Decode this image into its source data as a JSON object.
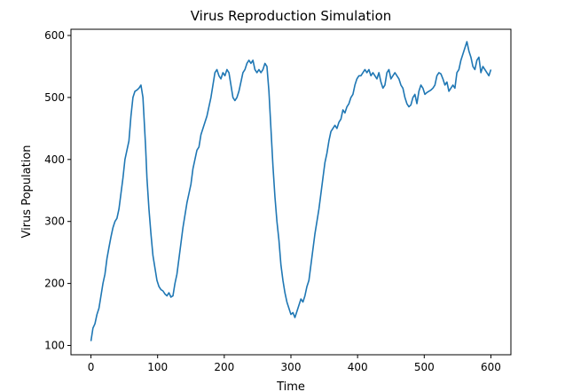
{
  "chart_data": {
    "type": "line",
    "title": "Virus Reproduction Simulation",
    "xlabel": "Time",
    "ylabel": "Virus Population",
    "xlim": [
      -30,
      630
    ],
    "ylim": [
      85,
      610
    ],
    "xticks": [
      0,
      100,
      200,
      300,
      400,
      500,
      600
    ],
    "yticks": [
      100,
      200,
      300,
      400,
      500,
      600
    ],
    "grid": false,
    "legend": "none",
    "series": [
      {
        "color": "#1f77b4",
        "x": [
          0,
          3,
          6,
          9,
          12,
          15,
          18,
          21,
          24,
          27,
          30,
          33,
          36,
          39,
          42,
          45,
          48,
          51,
          54,
          57,
          60,
          63,
          66,
          69,
          72,
          75,
          78,
          80,
          82,
          84,
          87,
          90,
          93,
          96,
          99,
          102,
          105,
          108,
          111,
          114,
          117,
          120,
          123,
          126,
          129,
          132,
          135,
          138,
          141,
          144,
          147,
          150,
          153,
          156,
          159,
          162,
          165,
          168,
          171,
          174,
          177,
          180,
          183,
          186,
          189,
          192,
          195,
          198,
          201,
          204,
          207,
          210,
          213,
          216,
          219,
          222,
          225,
          228,
          231,
          234,
          237,
          240,
          243,
          246,
          249,
          252,
          255,
          258,
          261,
          264,
          267,
          270,
          273,
          276,
          279,
          282,
          285,
          288,
          291,
          294,
          297,
          300,
          303,
          306,
          309,
          312,
          315,
          318,
          321,
          324,
          327,
          330,
          333,
          336,
          339,
          342,
          345,
          348,
          351,
          354,
          357,
          360,
          363,
          366,
          369,
          372,
          375,
          378,
          381,
          384,
          387,
          390,
          393,
          396,
          399,
          402,
          405,
          408,
          411,
          414,
          417,
          420,
          423,
          426,
          429,
          432,
          435,
          438,
          441,
          444,
          447,
          450,
          453,
          456,
          459,
          462,
          465,
          468,
          471,
          474,
          477,
          480,
          483,
          486,
          489,
          492,
          495,
          498,
          501,
          504,
          507,
          510,
          513,
          516,
          519,
          522,
          525,
          528,
          531,
          534,
          537,
          540,
          543,
          546,
          549,
          552,
          555,
          558,
          561,
          564,
          567,
          570,
          573,
          576,
          579,
          582,
          585,
          588,
          591,
          594,
          597,
          600
        ],
        "y": [
          107,
          128,
          135,
          150,
          160,
          180,
          200,
          215,
          240,
          258,
          275,
          290,
          300,
          305,
          320,
          345,
          370,
          400,
          415,
          430,
          470,
          500,
          510,
          512,
          515,
          520,
          500,
          460,
          420,
          370,
          320,
          280,
          245,
          225,
          205,
          195,
          190,
          188,
          183,
          180,
          185,
          178,
          180,
          200,
          215,
          240,
          265,
          290,
          310,
          330,
          345,
          360,
          385,
          400,
          415,
          420,
          440,
          450,
          460,
          470,
          485,
          500,
          520,
          540,
          545,
          535,
          530,
          540,
          535,
          545,
          540,
          520,
          500,
          495,
          500,
          510,
          525,
          540,
          545,
          555,
          560,
          555,
          560,
          545,
          540,
          545,
          540,
          545,
          555,
          550,
          510,
          450,
          390,
          340,
          300,
          270,
          230,
          205,
          185,
          170,
          160,
          150,
          153,
          145,
          155,
          165,
          175,
          170,
          180,
          195,
          205,
          230,
          255,
          280,
          300,
          320,
          345,
          370,
          395,
          410,
          430,
          445,
          450,
          455,
          450,
          460,
          465,
          480,
          475,
          485,
          490,
          500,
          505,
          520,
          530,
          535,
          535,
          540,
          545,
          540,
          545,
          535,
          540,
          535,
          530,
          540,
          525,
          515,
          520,
          540,
          545,
          530,
          535,
          540,
          535,
          530,
          520,
          515,
          500,
          490,
          485,
          488,
          500,
          505,
          490,
          510,
          520,
          515,
          505,
          508,
          510,
          512,
          515,
          520,
          535,
          540,
          538,
          530,
          520,
          525,
          510,
          515,
          520,
          515,
          540,
          545,
          560,
          570,
          580,
          590,
          575,
          565,
          550,
          545,
          560,
          565,
          540,
          550,
          545,
          540,
          535,
          545
        ]
      }
    ]
  }
}
